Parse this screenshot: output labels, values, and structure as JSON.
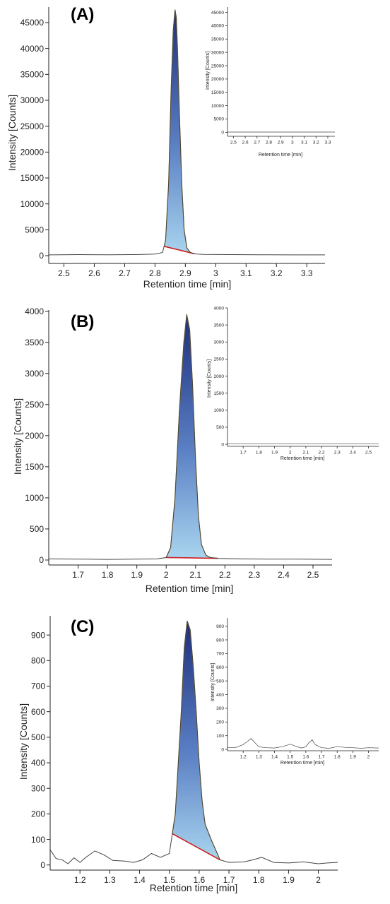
{
  "colors": {
    "axis": "#222222",
    "baseline_trace": "#444444",
    "peak_top": "#1e2e7a",
    "peak_bottom": "#a8d4ee",
    "peak_outline": "#b58a1a",
    "integration_baseline": "#cc2020"
  },
  "chart_data": [
    {
      "type": "line",
      "panel_label": "(A)",
      "xlabel": "Retention time [min]",
      "ylabel": "Intensity [Counts]",
      "xlim": [
        2.45,
        3.36
      ],
      "ylim": [
        -1500,
        48000
      ],
      "xticks": [
        2.5,
        2.6,
        2.7,
        2.8,
        2.9,
        3,
        3.1,
        3.2,
        3.3
      ],
      "xtick_labels": [
        "2.5",
        "2.6",
        "2.7",
        "2.8",
        "2.9",
        "3",
        "3.1",
        "3.2",
        "3.3"
      ],
      "yticks": [
        0,
        5000,
        10000,
        15000,
        20000,
        25000,
        30000,
        35000,
        40000,
        45000
      ],
      "ytick_labels": [
        "0",
        "5000",
        "10000",
        "15000",
        "20000",
        "25000",
        "30000",
        "35000",
        "40000",
        "45000"
      ],
      "trace": {
        "x": [
          2.45,
          2.55,
          2.65,
          2.75,
          2.8,
          2.825,
          2.835,
          2.845,
          2.853,
          2.86,
          2.866,
          2.87,
          2.874,
          2.88,
          2.888,
          2.896,
          2.905,
          2.915,
          2.925,
          2.94,
          2.96,
          3.05,
          3.15,
          3.25,
          3.36
        ],
        "y": [
          150,
          200,
          180,
          220,
          300,
          600,
          3000,
          14000,
          32000,
          43500,
          47500,
          46000,
          40000,
          28000,
          14000,
          5000,
          1500,
          700,
          400,
          300,
          250,
          200,
          180,
          150,
          150
        ]
      },
      "peak": {
        "start": 2.83,
        "end": 2.93
      },
      "inset": {
        "xlabel": "Retention time [min]",
        "ylabel": "Intensity [Counts]",
        "xlim": [
          2.45,
          3.36
        ],
        "ylim": [
          -1500,
          47000
        ],
        "xticks": [
          2.5,
          2.6,
          2.7,
          2.8,
          2.9,
          3,
          3.1,
          3.2,
          3.3
        ],
        "xtick_labels": [
          "2.5",
          "2.6",
          "2.7",
          "2.8",
          "2.9",
          "3",
          "3.1",
          "3.2",
          "3.3"
        ],
        "yticks": [
          0,
          5000,
          10000,
          15000,
          20000,
          25000,
          30000,
          35000,
          40000,
          45000
        ],
        "ytick_labels": [
          "0",
          "5000",
          "10000",
          "15000",
          "20000",
          "25000",
          "30000",
          "35000",
          "40000",
          "45000"
        ],
        "trace": {
          "x": [
            2.45,
            3.36
          ],
          "y": [
            100,
            100
          ]
        }
      }
    },
    {
      "type": "line",
      "panel_label": "(B)",
      "xlabel": "Retention time [min]",
      "ylabel": "Intensity [Counts]",
      "xlim": [
        1.6,
        2.565
      ],
      "ylim": [
        -80,
        4020
      ],
      "xticks": [
        1.7,
        1.8,
        1.9,
        2,
        2.1,
        2.2,
        2.3,
        2.4,
        2.5
      ],
      "xtick_labels": [
        "1.7",
        "1.8",
        "1.9",
        "2",
        "2.1",
        "2.2",
        "2.3",
        "2.4",
        "2.5"
      ],
      "yticks": [
        0,
        500,
        1000,
        1500,
        2000,
        2500,
        3000,
        3500,
        4000
      ],
      "ytick_labels": [
        "0",
        "500",
        "1000",
        "1500",
        "2000",
        "2500",
        "3000",
        "3500",
        "4000"
      ],
      "trace": {
        "x": [
          1.6,
          1.7,
          1.8,
          1.9,
          1.97,
          2.0,
          2.015,
          2.03,
          2.045,
          2.06,
          2.07,
          2.08,
          2.09,
          2.1,
          2.11,
          2.12,
          2.135,
          2.15,
          2.18,
          2.25,
          2.35,
          2.45,
          2.565
        ],
        "y": [
          20,
          15,
          10,
          15,
          20,
          40,
          200,
          1000,
          2400,
          3500,
          3950,
          3700,
          2800,
          1600,
          700,
          250,
          80,
          40,
          25,
          20,
          15,
          15,
          10
        ]
      },
      "peak": {
        "start": 2.0,
        "end": 2.175
      },
      "inset": {
        "xlabel": "Retention time [min]",
        "ylabel": "Intensity [Counts]",
        "xlim": [
          1.6,
          2.565
        ],
        "ylim": [
          -60,
          4000
        ],
        "xticks": [
          1.7,
          1.8,
          1.9,
          2,
          2.1,
          2.2,
          2.3,
          2.4,
          2.5
        ],
        "xtick_labels": [
          "1.7",
          "1.8",
          "1.9",
          "2",
          "2.1",
          "2.2",
          "2.3",
          "2.4",
          "2.5"
        ],
        "yticks": [
          0,
          500,
          1000,
          1500,
          2000,
          2500,
          3000,
          3500,
          4000
        ],
        "ytick_labels": [
          "0",
          "500",
          "1000",
          "1500",
          "2000",
          "2500",
          "3000",
          "3500",
          "4000"
        ],
        "trace": {
          "x": [
            1.6,
            2.565
          ],
          "y": [
            8,
            8
          ]
        }
      }
    },
    {
      "type": "line",
      "panel_label": "(C)",
      "xlabel": "Retention time [min]",
      "ylabel": "Intensity [Counts]",
      "xlim": [
        1.1,
        2.065
      ],
      "ylim": [
        -20,
        975
      ],
      "xticks": [
        1.2,
        1.3,
        1.4,
        1.5,
        1.6,
        1.7,
        1.8,
        1.9,
        2
      ],
      "xtick_labels": [
        "1.2",
        "1.3",
        "1.4",
        "1.5",
        "1.6",
        "1.7",
        "1.8",
        "1.9",
        "2"
      ],
      "yticks": [
        0,
        100,
        200,
        300,
        400,
        500,
        600,
        700,
        800,
        900
      ],
      "ytick_labels": [
        "0",
        "100",
        "200",
        "300",
        "400",
        "500",
        "600",
        "700",
        "800",
        "900"
      ],
      "trace": {
        "x": [
          1.1,
          1.12,
          1.14,
          1.16,
          1.18,
          1.2,
          1.22,
          1.25,
          1.28,
          1.31,
          1.35,
          1.38,
          1.41,
          1.44,
          1.47,
          1.5,
          1.52,
          1.54,
          1.55,
          1.56,
          1.57,
          1.58,
          1.59,
          1.6,
          1.61,
          1.62,
          1.64,
          1.67,
          1.7,
          1.75,
          1.78,
          1.81,
          1.85,
          1.9,
          1.95,
          2.0,
          2.03,
          2.065
        ],
        "y": [
          60,
          25,
          20,
          5,
          28,
          10,
          30,
          55,
          40,
          18,
          15,
          10,
          20,
          45,
          30,
          45,
          200,
          600,
          850,
          955,
          920,
          780,
          600,
          400,
          250,
          160,
          100,
          20,
          10,
          12,
          20,
          30,
          10,
          8,
          12,
          5,
          8,
          10
        ]
      },
      "peak": {
        "start": 1.51,
        "end": 1.67
      },
      "inset": {
        "xlabel": "Retention time [min]",
        "ylabel": "Intensity [Counts]",
        "xlim": [
          1.1,
          2.065
        ],
        "ylim": [
          -10,
          960
        ],
        "xticks": [
          1.2,
          1.3,
          1.4,
          1.5,
          1.6,
          1.7,
          1.8,
          1.9,
          2
        ],
        "xtick_labels": [
          "1.2",
          "1.3",
          "1.4",
          "1.5",
          "1.6",
          "1.7",
          "1.8",
          "1.9",
          "2"
        ],
        "yticks": [
          0,
          100,
          200,
          300,
          400,
          500,
          600,
          700,
          800,
          900
        ],
        "ytick_labels": [
          "0",
          "100",
          "200",
          "300",
          "400",
          "500",
          "600",
          "700",
          "800",
          "900"
        ],
        "trace": {
          "x": [
            1.1,
            1.15,
            1.2,
            1.23,
            1.25,
            1.27,
            1.3,
            1.35,
            1.4,
            1.45,
            1.48,
            1.5,
            1.53,
            1.57,
            1.6,
            1.62,
            1.64,
            1.66,
            1.7,
            1.75,
            1.8,
            1.85,
            1.9,
            1.95,
            2.0,
            2.065
          ],
          "y": [
            15,
            12,
            35,
            60,
            80,
            55,
            18,
            12,
            10,
            20,
            30,
            38,
            25,
            10,
            18,
            50,
            70,
            35,
            12,
            8,
            20,
            15,
            12,
            8,
            12,
            10
          ]
        }
      }
    }
  ]
}
